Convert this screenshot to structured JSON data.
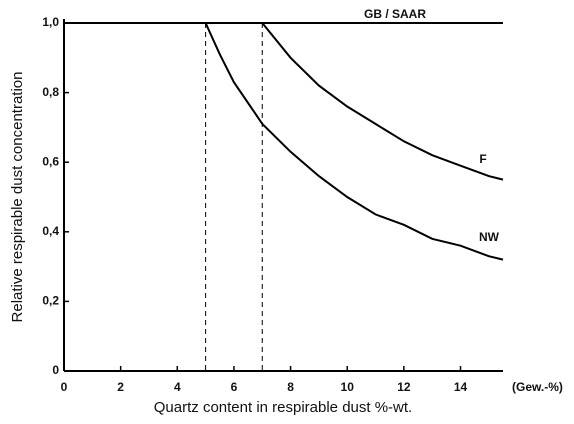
{
  "chart_data": {
    "type": "line",
    "x_label": "Quartz content in respirable dust %-wt.",
    "x_unit": "(Gew.-%)",
    "y_label": "Relative respirable dust concentration",
    "xlim": [
      0,
      15.5
    ],
    "ylim": [
      0,
      1.0
    ],
    "xticks": [
      0,
      2,
      4,
      6,
      8,
      10,
      12,
      14
    ],
    "yticks": [
      0,
      {
        "value": 0.2,
        "label": "0,2"
      },
      {
        "value": 0.4,
        "label": "0,4"
      },
      {
        "value": 0.6,
        "label": "0,6"
      },
      {
        "value": 0.8,
        "label": "0,8"
      },
      {
        "value": 1.0,
        "label": "1,0"
      }
    ],
    "vlines": [
      5,
      7
    ],
    "series": [
      {
        "name": "GB / SAAR",
        "color": "#000000",
        "x": [
          0,
          15.5
        ],
        "values": [
          1.0,
          1.0
        ]
      },
      {
        "name": "F",
        "color": "#000000",
        "x": [
          7,
          8,
          9,
          10,
          11,
          12,
          13,
          14,
          15,
          15.5
        ],
        "values": [
          1.0,
          0.9,
          0.82,
          0.76,
          0.71,
          0.66,
          0.62,
          0.59,
          0.56,
          0.55
        ]
      },
      {
        "name": "NW",
        "color": "#000000",
        "x": [
          5,
          5.5,
          6,
          6.5,
          7,
          8,
          9,
          10,
          11,
          12,
          13,
          14,
          15,
          15.5
        ],
        "values": [
          1.0,
          0.91,
          0.83,
          0.77,
          0.71,
          0.63,
          0.56,
          0.5,
          0.45,
          0.42,
          0.38,
          0.36,
          0.33,
          0.32
        ]
      }
    ]
  }
}
